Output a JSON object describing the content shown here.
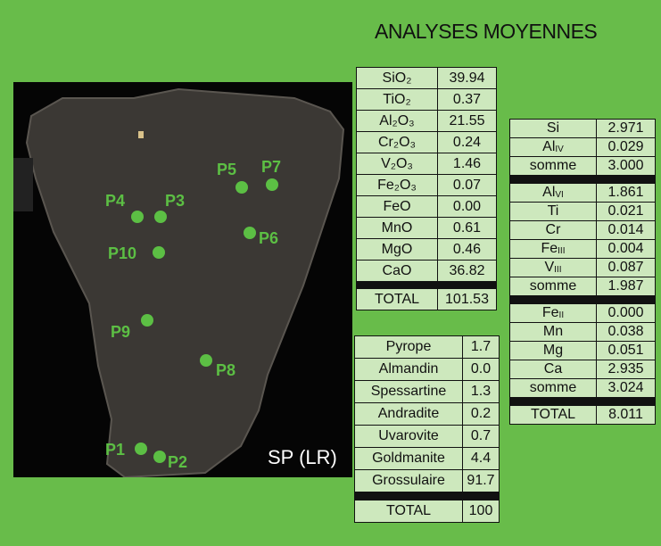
{
  "title": "ANALYSES MOYENNES",
  "image_label": "SP (LR)",
  "points": [
    "P1",
    "P2",
    "P3",
    "P4",
    "P5",
    "P6",
    "P7",
    "P8",
    "P9",
    "P10"
  ],
  "oxides": {
    "groups": [
      [
        {
          "label": "SiO₂",
          "value": "39.94"
        },
        {
          "label": "TiO₂",
          "value": "0.37"
        },
        {
          "label": "Al₂O₃",
          "value": "21.55"
        },
        {
          "label": "Cr₂O₃",
          "value": "0.24"
        },
        {
          "label": "V₂O₃",
          "value": "1.46"
        },
        {
          "label": "Fe₂O₃",
          "value": "0.07"
        },
        {
          "label": "FeO",
          "value": "0.00"
        },
        {
          "label": "MnO",
          "value": "0.61"
        },
        {
          "label": "MgO",
          "value": "0.46"
        },
        {
          "label": "CaO",
          "value": "36.82"
        }
      ]
    ],
    "total": {
      "label": "TOTAL",
      "value": "101.53"
    }
  },
  "cations": {
    "groups": [
      [
        {
          "label": "Si",
          "value": "2.971"
        },
        {
          "label": "Al",
          "sub": "IV",
          "value": "0.029"
        },
        {
          "label": "somme",
          "value": "3.000"
        }
      ],
      [
        {
          "label": "Al",
          "sub": "VI",
          "value": "1.861"
        },
        {
          "label": "Ti",
          "value": "0.021"
        },
        {
          "label": "Cr",
          "value": "0.014"
        },
        {
          "label": "Fe",
          "sub": "III",
          "value": "0.004"
        },
        {
          "label": "V",
          "sub": "III",
          "value": "0.087"
        },
        {
          "label": "somme",
          "value": "1.987"
        }
      ],
      [
        {
          "label": "Fe",
          "sub": "II",
          "value": "0.000"
        },
        {
          "label": "Mn",
          "value": "0.038"
        },
        {
          "label": "Mg",
          "value": "0.051"
        },
        {
          "label": "Ca",
          "value": "2.935"
        },
        {
          "label": "somme",
          "value": "3.024"
        }
      ]
    ],
    "total": {
      "label": "TOTAL",
      "value": "8.011"
    }
  },
  "endmembers": {
    "groups": [
      [
        {
          "label": "Pyrope",
          "value": "1.7"
        },
        {
          "label": "Almandin",
          "value": "0.0"
        },
        {
          "label": "Spessartine",
          "value": "1.3"
        },
        {
          "label": "Andradite",
          "value": "0.2"
        },
        {
          "label": "Uvarovite",
          "value": "0.7"
        },
        {
          "label": "Goldmanite",
          "value": "4.4"
        },
        {
          "label": "Grossulaire",
          "value": "91.7"
        }
      ]
    ],
    "total": {
      "label": "TOTAL",
      "value": "100"
    }
  }
}
